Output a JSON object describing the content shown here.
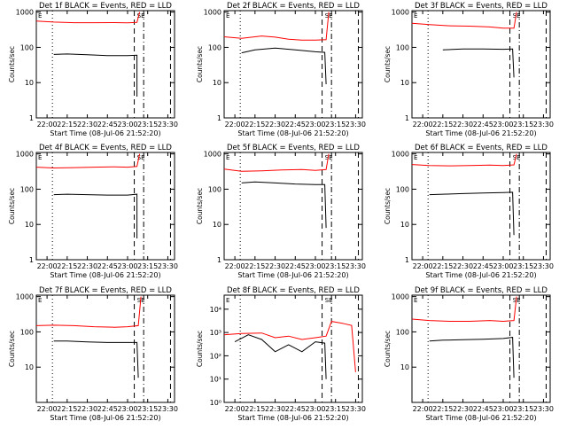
{
  "colors": {
    "events": "#000000",
    "lld": "#ff0000",
    "axis": "#000000",
    "background": "#ffffff"
  },
  "chart_data": [
    {
      "type": "line",
      "title": "Det 1f BLACK = Events, RED = LLD",
      "xlabel": "Start Time (08-Jul-06 21:52:20)",
      "ylabel": "Counts/sec",
      "x_ticks": [
        "22:00",
        "22:15",
        "22:30",
        "22:45",
        "23:00",
        "23:15",
        "23:30"
      ],
      "y_ticks": [
        "1",
        "10",
        "100",
        "1000"
      ],
      "y_scale": "log",
      "ylim": [
        1,
        1100
      ],
      "xlim": [
        "21:52",
        "23:35"
      ],
      "corner_labels": [
        "E",
        "SE"
      ],
      "series": [
        {
          "points": [
            [
              "21:52",
              560
            ],
            [
              "22:05",
              520
            ],
            [
              "22:20",
              500
            ],
            [
              "22:35",
              500
            ],
            [
              "22:50",
              505
            ],
            [
              "23:00",
              495
            ],
            [
              "23:07",
              510
            ],
            [
              "23:09",
              1000
            ]
          ]
        },
        {
          "points": [
            [
              "22:05",
              63
            ],
            [
              "22:15",
              65
            ],
            [
              "22:30",
              62
            ],
            [
              "22:45",
              58
            ],
            [
              "23:00",
              58
            ],
            [
              "23:07",
              60
            ],
            [
              "23:07",
              4
            ]
          ]
        }
      ]
    },
    {
      "type": "line",
      "title": "Det 2f BLACK = Events, RED = LLD",
      "xlabel": "Start Time (08-Jul-06 21:52:20)",
      "ylabel": "Counts/sec",
      "x_ticks": [
        "22:00",
        "22:15",
        "22:30",
        "22:45",
        "23:00",
        "23:15",
        "23:30"
      ],
      "y_ticks": [
        "1",
        "10",
        "100",
        "1000"
      ],
      "y_scale": "log",
      "ylim": [
        1,
        1100
      ],
      "xlim": [
        "21:52",
        "23:35"
      ],
      "corner_labels": [
        "E",
        "SE"
      ],
      "series": [
        {
          "points": [
            [
              "21:52",
              200
            ],
            [
              "22:05",
              180
            ],
            [
              "22:20",
              210
            ],
            [
              "22:30",
              195
            ],
            [
              "22:40",
              170
            ],
            [
              "22:50",
              160
            ],
            [
              "23:00",
              160
            ],
            [
              "23:08",
              165
            ],
            [
              "23:10",
              1000
            ]
          ]
        },
        {
          "points": [
            [
              "22:05",
              70
            ],
            [
              "22:15",
              85
            ],
            [
              "22:30",
              95
            ],
            [
              "22:45",
              85
            ],
            [
              "23:00",
              75
            ],
            [
              "23:07",
              72
            ],
            [
              "23:08",
              9
            ]
          ]
        }
      ]
    },
    {
      "type": "line",
      "title": "Det 3f BLACK = Events, RED = LLD",
      "xlabel": "Start Time (08-Jul-06 21:52:20)",
      "ylabel": "Counts/sec",
      "x_ticks": [
        "22:00",
        "22:15",
        "22:30",
        "22:45",
        "23:00",
        "23:15",
        "23:30"
      ],
      "y_ticks": [
        "1",
        "10",
        "100",
        "1000"
      ],
      "y_scale": "log",
      "ylim": [
        1,
        1100
      ],
      "xlim": [
        "21:52",
        "23:35"
      ],
      "corner_labels": [
        "E",
        "SE"
      ],
      "series": [
        {
          "points": [
            [
              "21:52",
              480
            ],
            [
              "22:05",
              440
            ],
            [
              "22:20",
              410
            ],
            [
              "22:35",
              400
            ],
            [
              "22:50",
              380
            ],
            [
              "23:00",
              350
            ],
            [
              "23:08",
              350
            ],
            [
              "23:10",
              1000
            ]
          ]
        },
        {
          "points": [
            [
              "22:15",
              85
            ],
            [
              "22:30",
              90
            ],
            [
              "22:45",
              90
            ],
            [
              "23:00",
              88
            ],
            [
              "23:07",
              90
            ],
            [
              "23:08",
              14
            ]
          ]
        }
      ]
    },
    {
      "type": "line",
      "title": "Det 4f BLACK = Events, RED = LLD",
      "xlabel": "Start Time (08-Jul-06 21:52:20)",
      "ylabel": "Counts/sec",
      "x_ticks": [
        "22:00",
        "22:15",
        "22:30",
        "22:45",
        "23:00",
        "23:15",
        "23:30"
      ],
      "y_ticks": [
        "1",
        "10",
        "100",
        "1000"
      ],
      "y_scale": "log",
      "ylim": [
        1,
        1100
      ],
      "xlim": [
        "21:52",
        "23:35"
      ],
      "corner_labels": [
        "E",
        "SE"
      ],
      "series": [
        {
          "points": [
            [
              "21:52",
              420
            ],
            [
              "22:05",
              400
            ],
            [
              "22:20",
              410
            ],
            [
              "22:35",
              420
            ],
            [
              "22:50",
              430
            ],
            [
              "23:00",
              420
            ],
            [
              "23:07",
              440
            ],
            [
              "23:09",
              1000
            ]
          ]
        },
        {
          "points": [
            [
              "22:05",
              70
            ],
            [
              "22:15",
              72
            ],
            [
              "22:30",
              70
            ],
            [
              "22:45",
              68
            ],
            [
              "23:00",
              68
            ],
            [
              "23:07",
              72
            ],
            [
              "23:07",
              4
            ]
          ]
        }
      ]
    },
    {
      "type": "line",
      "title": "Det 5f BLACK = Events, RED = LLD",
      "xlabel": "Start Time (08-Jul-06 21:52:20)",
      "ylabel": "Counts/sec",
      "x_ticks": [
        "22:00",
        "22:15",
        "22:30",
        "22:45",
        "23:00",
        "23:15",
        "23:30"
      ],
      "y_ticks": [
        "1",
        "10",
        "100",
        "1000"
      ],
      "y_scale": "log",
      "ylim": [
        1,
        1100
      ],
      "xlim": [
        "21:52",
        "23:35"
      ],
      "corner_labels": [
        "E",
        "SE"
      ],
      "series": [
        {
          "points": [
            [
              "21:52",
              370
            ],
            [
              "22:05",
              320
            ],
            [
              "22:20",
              330
            ],
            [
              "22:35",
              350
            ],
            [
              "22:50",
              360
            ],
            [
              "23:00",
              340
            ],
            [
              "23:08",
              360
            ],
            [
              "23:10",
              1000
            ]
          ]
        },
        {
          "points": [
            [
              "22:05",
              150
            ],
            [
              "22:15",
              160
            ],
            [
              "22:30",
              150
            ],
            [
              "22:45",
              140
            ],
            [
              "23:00",
              135
            ],
            [
              "23:07",
              135
            ],
            [
              "23:08",
              8
            ]
          ]
        }
      ]
    },
    {
      "type": "line",
      "title": "Det 6f BLACK = Events, RED = LLD",
      "xlabel": "Start Time (08-Jul-06 21:52:20)",
      "ylabel": "Counts/sec",
      "x_ticks": [
        "22:00",
        "22:15",
        "22:30",
        "22:45",
        "23:00",
        "23:15",
        "23:30"
      ],
      "y_ticks": [
        "1",
        "10",
        "100",
        "1000"
      ],
      "y_scale": "log",
      "ylim": [
        1,
        1100
      ],
      "xlim": [
        "21:52",
        "23:35"
      ],
      "corner_labels": [
        "E",
        "SE"
      ],
      "series": [
        {
          "points": [
            [
              "21:52",
              500
            ],
            [
              "22:05",
              470
            ],
            [
              "22:20",
              460
            ],
            [
              "22:35",
              470
            ],
            [
              "22:50",
              480
            ],
            [
              "23:00",
              470
            ],
            [
              "23:08",
              490
            ],
            [
              "23:10",
              1000
            ]
          ]
        },
        {
          "points": [
            [
              "22:05",
              70
            ],
            [
              "22:15",
              72
            ],
            [
              "22:30",
              75
            ],
            [
              "22:45",
              78
            ],
            [
              "23:00",
              80
            ],
            [
              "23:07",
              82
            ],
            [
              "23:08",
              5
            ]
          ]
        }
      ]
    },
    {
      "type": "line",
      "title": "Det 7f BLACK = Events, RED = LLD",
      "xlabel": "Start Time (08-Jul-06 21:52:20)",
      "ylabel": "Counts/sec",
      "x_ticks": [
        "22:00",
        "22:15",
        "22:30",
        "22:45",
        "23:00",
        "23:15",
        "23:30"
      ],
      "y_ticks": [
        "10",
        "100",
        "1000"
      ],
      "y_scale": "log",
      "ylim": [
        1,
        1100
      ],
      "xlim": [
        "21:52",
        "23:35"
      ],
      "corner_labels": [
        "E",
        "SE"
      ],
      "series": [
        {
          "points": [
            [
              "21:52",
              150
            ],
            [
              "22:05",
              155
            ],
            [
              "22:20",
              150
            ],
            [
              "22:35",
              140
            ],
            [
              "22:50",
              135
            ],
            [
              "23:00",
              140
            ],
            [
              "23:08",
              150
            ],
            [
              "23:10",
              1000
            ]
          ]
        },
        {
          "points": [
            [
              "22:05",
              55
            ],
            [
              "22:15",
              55
            ],
            [
              "22:30",
              52
            ],
            [
              "22:45",
              50
            ],
            [
              "23:00",
              50
            ],
            [
              "23:07",
              50
            ],
            [
              "23:08",
              5
            ]
          ]
        }
      ]
    },
    {
      "type": "line",
      "title": "Det 8f BLACK = Events, RED = LLD",
      "xlabel": "Start Time (08-Jul-06 21:52:20)",
      "ylabel": "Counts/sec",
      "x_ticks": [
        "22:00",
        "22:15",
        "22:30",
        "22:45",
        "23:00",
        "23:15",
        "23:30"
      ],
      "y_ticks": [
        "10⁰",
        "10¹",
        "10²",
        "10³",
        "10⁴"
      ],
      "y_scale": "log",
      "ylim": [
        1,
        40000
      ],
      "xlim": [
        "21:52",
        "23:35"
      ],
      "corner_labels": [
        "E",
        "SE"
      ],
      "series": [
        {
          "points": [
            [
              "21:52",
              800
            ],
            [
              "22:05",
              900
            ],
            [
              "22:20",
              950
            ],
            [
              "22:30",
              600
            ],
            [
              "22:40",
              700
            ],
            [
              "22:50",
              500
            ],
            [
              "23:00",
              600
            ],
            [
              "23:08",
              700
            ],
            [
              "23:12",
              3000
            ],
            [
              "23:20",
              2500
            ],
            [
              "23:27",
              2000
            ],
            [
              "23:30",
              20
            ]
          ]
        },
        {
          "points": [
            [
              "22:00",
              400
            ],
            [
              "22:10",
              800
            ],
            [
              "22:20",
              500
            ],
            [
              "22:30",
              150
            ],
            [
              "22:40",
              300
            ],
            [
              "22:50",
              150
            ],
            [
              "23:00",
              400
            ],
            [
              "23:07",
              350
            ],
            [
              "23:08",
              10
            ]
          ]
        }
      ]
    },
    {
      "type": "line",
      "title": "Det 9f BLACK = Events, RED = LLD",
      "xlabel": "Start Time (08-Jul-06 21:52:20)",
      "ylabel": "Counts/sec",
      "x_ticks": [
        "22:00",
        "22:15",
        "22:30",
        "22:45",
        "23:00",
        "23:15",
        "23:30"
      ],
      "y_ticks": [
        "10",
        "100",
        "1000"
      ],
      "y_scale": "log",
      "ylim": [
        1,
        1100
      ],
      "xlim": [
        "21:52",
        "23:35"
      ],
      "corner_labels": [
        "E",
        "SE"
      ],
      "series": [
        {
          "points": [
            [
              "21:52",
              230
            ],
            [
              "22:05",
              210
            ],
            [
              "22:20",
              200
            ],
            [
              "22:35",
              200
            ],
            [
              "22:50",
              210
            ],
            [
              "23:00",
              200
            ],
            [
              "23:08",
              210
            ],
            [
              "23:10",
              1000
            ]
          ]
        },
        {
          "points": [
            [
              "22:05",
              55
            ],
            [
              "22:15",
              58
            ],
            [
              "22:30",
              60
            ],
            [
              "22:45",
              62
            ],
            [
              "23:00",
              65
            ],
            [
              "23:07",
              70
            ],
            [
              "23:08",
              5
            ]
          ]
        }
      ]
    }
  ]
}
